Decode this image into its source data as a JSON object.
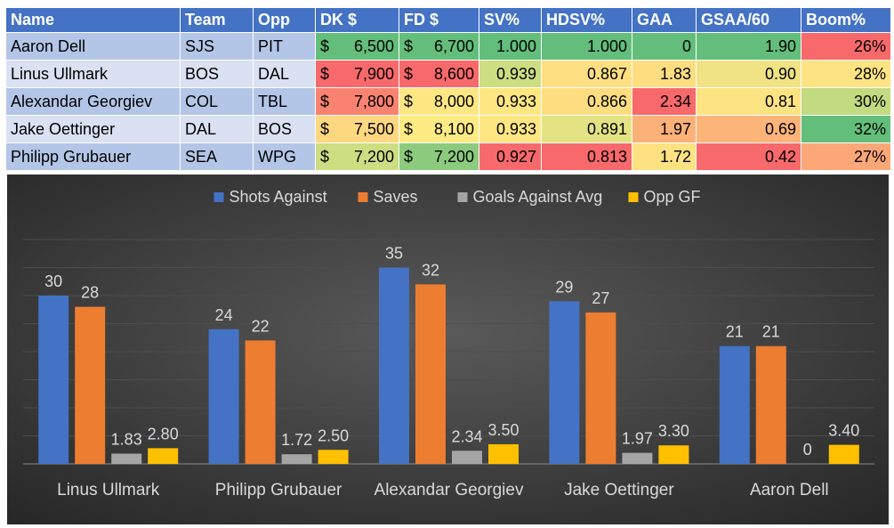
{
  "table": {
    "columns": [
      "Name",
      "Team",
      "Opp",
      "DK $",
      "FD $",
      "SV%",
      "HDSV%",
      "GAA",
      "GSAA/60",
      "Boom%"
    ],
    "rows": [
      {
        "name": "Aaron Dell",
        "team": "SJS",
        "opp": "PIT",
        "dk": "6,500",
        "fd": "6,700",
        "sv": "1.000",
        "hdsv": "1.000",
        "gaa": "0",
        "gsaa": "1.90",
        "boom": "26%",
        "colors": {
          "dk": "#63be7b",
          "fd": "#63be7b",
          "sv": "#63be7b",
          "hdsv": "#63be7b",
          "gaa": "#63be7b",
          "gsaa": "#63be7b",
          "boom": "#f8696b"
        }
      },
      {
        "name": "Linus Ullmark",
        "team": "BOS",
        "opp": "DAL",
        "dk": "7,900",
        "fd": "8,600",
        "sv": "0.939",
        "hdsv": "0.867",
        "gaa": "1.83",
        "gsaa": "0.90",
        "boom": "28%",
        "colors": {
          "dk": "#f8696b",
          "fd": "#f8696b",
          "sv": "#cddd82",
          "hdsv": "#fee082",
          "gaa": "#fedd81",
          "gsaa": "#f0e383",
          "boom": "#fee382"
        }
      },
      {
        "name": "Alexandar Georgiev",
        "team": "COL",
        "opp": "TBL",
        "dk": "7,800",
        "fd": "8,000",
        "sv": "0.933",
        "hdsv": "0.866",
        "gaa": "2.34",
        "gsaa": "0.81",
        "boom": "30%",
        "colors": {
          "dk": "#f98370",
          "fd": "#fee683",
          "sv": "#fee683",
          "hdsv": "#fedd81",
          "gaa": "#f8696b",
          "gsaa": "#fee383",
          "boom": "#c2da80"
        }
      },
      {
        "name": "Jake Oettinger",
        "team": "DAL",
        "opp": "BOS",
        "dk": "7,500",
        "fd": "8,100",
        "sv": "0.933",
        "hdsv": "0.891",
        "gaa": "1.97",
        "gsaa": "0.69",
        "boom": "32%",
        "colors": {
          "dk": "#fed880",
          "fd": "#feeb84",
          "sv": "#fee683",
          "hdsv": "#e3e383",
          "gaa": "#fbb178",
          "gsaa": "#fcb479",
          "boom": "#63be7b"
        }
      },
      {
        "name": "Philipp Grubauer",
        "team": "SEA",
        "opp": "WPG",
        "dk": "7,200",
        "fd": "7,200",
        "sv": "0.927",
        "hdsv": "0.813",
        "gaa": "1.72",
        "gsaa": "0.42",
        "boom": "27%",
        "colors": {
          "dk": "#cddd82",
          "fd": "#8ccb7e",
          "sv": "#f8696b",
          "hdsv": "#f8696b",
          "gaa": "#fee282",
          "gsaa": "#f8696b",
          "boom": "#fba777"
        }
      }
    ]
  },
  "chart_data": {
    "type": "bar",
    "categories": [
      "Linus Ullmark",
      "Philipp Grubauer",
      "Alexandar Georgiev",
      "Jake Oettinger",
      "Aaron Dell"
    ],
    "series": [
      {
        "name": "Shots Against",
        "color": "#4472c4",
        "values": [
          30,
          24,
          35,
          29,
          21
        ],
        "labels": [
          "30",
          "24",
          "35",
          "29",
          "21"
        ]
      },
      {
        "name": "Saves",
        "color": "#ed7d31",
        "values": [
          28,
          22,
          32,
          27,
          21
        ],
        "labels": [
          "28",
          "22",
          "32",
          "27",
          "21"
        ]
      },
      {
        "name": "Goals Against Avg",
        "color": "#a5a5a5",
        "values": [
          1.83,
          1.72,
          2.34,
          1.97,
          0
        ],
        "labels": [
          "1.83",
          "1.72",
          "2.34",
          "1.97",
          "0"
        ]
      },
      {
        "name": "Opp GF",
        "color": "#ffc000",
        "values": [
          2.8,
          2.5,
          3.5,
          3.3,
          3.4
        ],
        "labels": [
          "2.80",
          "2.50",
          "3.50",
          "3.30",
          "3.40"
        ]
      }
    ],
    "ylim": [
      0,
      40
    ],
    "grid": true,
    "legend": "top",
    "background": "dark-gradient"
  }
}
